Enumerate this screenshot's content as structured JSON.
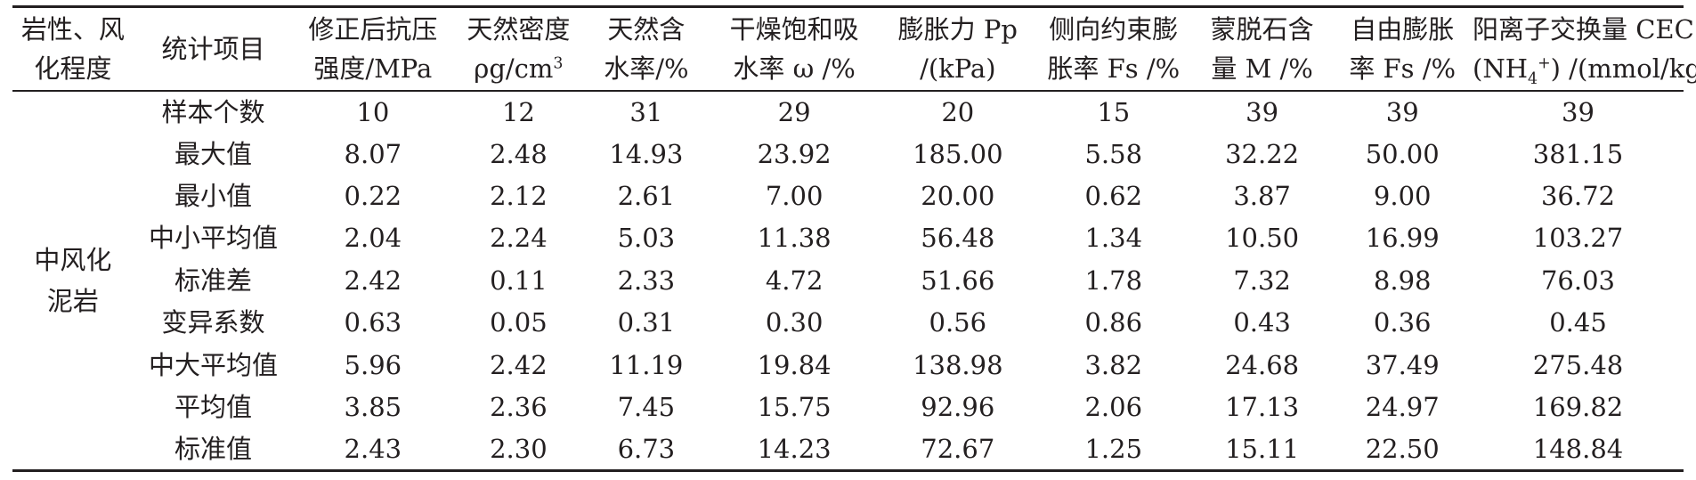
{
  "headers": [
    {
      "l1": "岩性、风",
      "l2": "化程度"
    },
    {
      "l1": "统计项目",
      "l2": ""
    },
    {
      "l1": "修正后抗压",
      "l2": "强度/MPa"
    },
    {
      "l1": "天然密度",
      "l2": "ρg/cm",
      "l2_sup": "3"
    },
    {
      "l1": "天然含",
      "l2": "水率/%"
    },
    {
      "l1": "干燥饱和吸",
      "l2": "水率 ω /%"
    },
    {
      "l1": "膨胀力 Pp",
      "l2": "/(kPa)"
    },
    {
      "l1": "侧向约束膨",
      "l2": "胀率 Fs /%"
    },
    {
      "l1": "蒙脱石含",
      "l2": "量 M /%"
    },
    {
      "l1": "自由膨胀",
      "l2": "率 Fs /%"
    },
    {
      "l1": "阳离子交换量 CEC",
      "l2_pre": "(NH",
      "l2_sub": "4",
      "l2_sup": "+",
      "l2_post": ") /(mmol/kg)"
    }
  ],
  "group": {
    "line1": "中风化",
    "line2": "泥岩"
  },
  "rows": [
    {
      "label": "样本个数",
      "values": [
        "10",
        "12",
        "31",
        "29",
        "20",
        "15",
        "39",
        "39",
        "39"
      ]
    },
    {
      "label": "最大值",
      "values": [
        "8.07",
        "2.48",
        "14.93",
        "23.92",
        "185.00",
        "5.58",
        "32.22",
        "50.00",
        "381.15"
      ]
    },
    {
      "label": "最小值",
      "values": [
        "0.22",
        "2.12",
        "2.61",
        "7.00",
        "20.00",
        "0.62",
        "3.87",
        "9.00",
        "36.72"
      ]
    },
    {
      "label": "中小平均值",
      "values": [
        "2.04",
        "2.24",
        "5.03",
        "11.38",
        "56.48",
        "1.34",
        "10.50",
        "16.99",
        "103.27"
      ]
    },
    {
      "label": "标准差",
      "values": [
        "2.42",
        "0.11",
        "2.33",
        "4.72",
        "51.66",
        "1.78",
        "7.32",
        "8.98",
        "76.03"
      ]
    },
    {
      "label": "变异系数",
      "values": [
        "0.63",
        "0.05",
        "0.31",
        "0.30",
        "0.56",
        "0.86",
        "0.43",
        "0.36",
        "0.45"
      ]
    },
    {
      "label": "中大平均值",
      "values": [
        "5.96",
        "2.42",
        "11.19",
        "19.84",
        "138.98",
        "3.82",
        "24.68",
        "37.49",
        "275.48"
      ]
    },
    {
      "label": "平均值",
      "values": [
        "3.85",
        "2.36",
        "7.45",
        "15.75",
        "92.96",
        "2.06",
        "17.13",
        "24.97",
        "169.82"
      ]
    },
    {
      "label": "标准值",
      "values": [
        "2.43",
        "2.30",
        "6.73",
        "14.23",
        "72.67",
        "1.25",
        "15.11",
        "22.50",
        "148.84"
      ]
    }
  ]
}
